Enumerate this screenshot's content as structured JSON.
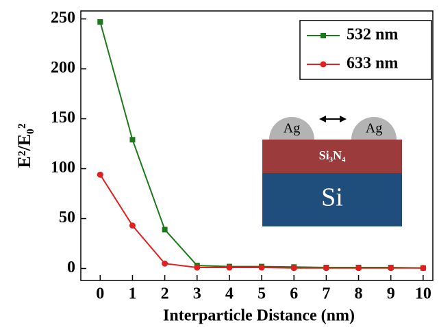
{
  "chart_data": {
    "type": "line",
    "x_label": "Interparticle Distance (nm)",
    "y_label": "E²/E₀²",
    "x": [
      0,
      1,
      2,
      3,
      4,
      5,
      6,
      7,
      8,
      9,
      10
    ],
    "series": [
      {
        "name": "532 nm",
        "color": "#1a7a1a",
        "marker": "square",
        "values": [
          247,
          129,
          39,
          3,
          2,
          2,
          1.5,
          1,
          1,
          1,
          0.5
        ]
      },
      {
        "name": "633 nm",
        "color": "#e02020",
        "marker": "circle",
        "values": [
          94,
          43,
          5,
          1,
          1,
          1,
          0.5,
          0.5,
          0.5,
          0.5,
          0.5
        ]
      }
    ],
    "xlim": [
      -0.6,
      10.3
    ],
    "xticks": [
      0,
      1,
      2,
      3,
      4,
      5,
      6,
      7,
      8,
      9,
      10
    ],
    "ylim": [
      -12,
      258
    ],
    "yticks": [
      0,
      50,
      100,
      150,
      200,
      250
    ],
    "legend": "upper right",
    "annotations": [
      "Ag",
      "Ag",
      "Si₃N₄",
      "Si"
    ]
  }
}
